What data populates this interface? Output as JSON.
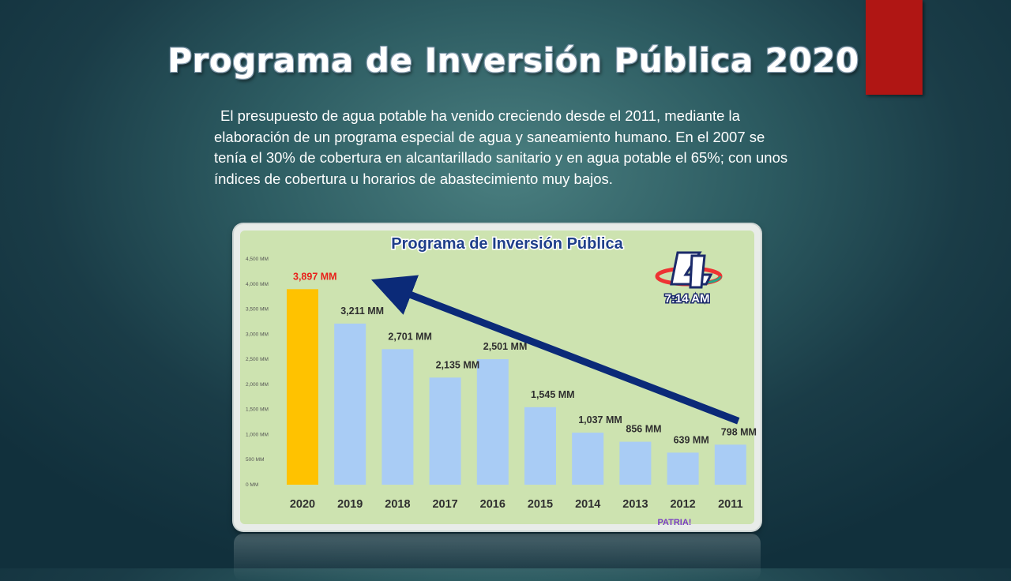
{
  "slide": {
    "title": "Programa de Inversión Pública 2020",
    "paragraph": "El presupuesto de agua potable ha venido creciendo desde el 2011, mediante la elaboración de un programa especial de agua y saneamiento humano. En el 2007 se tenía el 30% de cobertura en alcantarillado sanitario y en agua potable el 65%; con unos índices de cobertura u horarios de abastecimiento muy bajos.",
    "accent_color": "#b01614"
  },
  "logo": {
    "icon": "channel-4-logo",
    "time": "7:14 AM",
    "watermark": "PATRIA!"
  },
  "chart_data": {
    "type": "bar",
    "title": "Programa de Inversión Pública",
    "xlabel": "",
    "ylabel": "",
    "categories": [
      "2020",
      "2019",
      "2018",
      "2017",
      "2016",
      "2015",
      "2014",
      "2013",
      "2012",
      "2011"
    ],
    "values": [
      3897,
      3211,
      2701,
      2135,
      2501,
      1545,
      1037,
      856,
      639,
      798
    ],
    "labels": [
      "3,897 MM",
      "3,211 MM",
      "2,701 MM",
      "2,135 MM",
      "2,501 MM",
      "1,545 MM",
      "1,037 MM",
      "856 MM",
      "639 MM",
      "798 MM"
    ],
    "yticks": [
      "0 MM",
      "500 MM",
      "1,000 MM",
      "1,500 MM",
      "2,000 MM",
      "2,500 MM",
      "3,000 MM",
      "3,500 MM",
      "4,000 MM",
      "4,500 MM"
    ],
    "ylim": [
      0,
      4500
    ],
    "grid": false,
    "legend": "none",
    "colors": {
      "highlight_bar": "#ffc200",
      "bar": "#a9ccf5",
      "highlight_label": "#e8201a",
      "label": "#2f2f2f",
      "trend_arrow": "#0b2a78",
      "plot_background": "#cde3b0",
      "title_color": "#1f3f8a"
    }
  }
}
